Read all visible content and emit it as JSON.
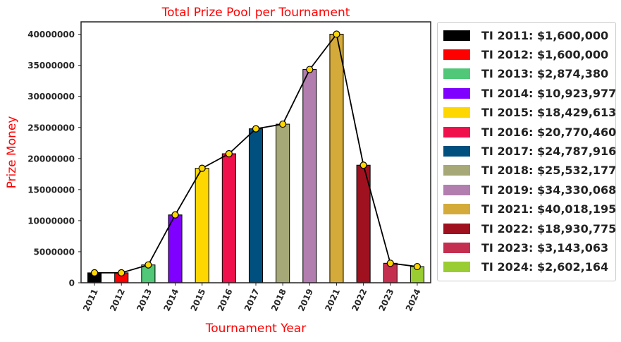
{
  "chart_data": {
    "type": "bar",
    "title": "Total Prize Pool per Tournament",
    "xlabel": "Tournament Year",
    "ylabel": "Prize Money",
    "categories": [
      "2011",
      "2012",
      "2013",
      "2014",
      "2015",
      "2016",
      "2017",
      "2018",
      "2019",
      "2021",
      "2022",
      "2023",
      "2024"
    ],
    "values": [
      1600000,
      1600000,
      2874380,
      10923977,
      18429613,
      20770460,
      24787916,
      25532177,
      34330068,
      40018195,
      18930775,
      3143063,
      2602164
    ],
    "line_overlay": {
      "values": [
        1600000,
        1600000,
        2874380,
        10923977,
        18429613,
        20770460,
        24787916,
        25532177,
        34330068,
        40018195,
        18930775,
        3143063,
        2602164
      ],
      "line_color": "#000000",
      "marker_color": "#FFD700"
    },
    "bar_colors": [
      "#000000",
      "#FF0000",
      "#50C878",
      "#8000FF",
      "#FFD700",
      "#F0104C",
      "#00507F",
      "#A6A877",
      "#B27DAF",
      "#D4AB3A",
      "#A0111F",
      "#C42F4F",
      "#9ACD32"
    ],
    "ylim": [
      0,
      42000000
    ],
    "yticks": [
      0,
      5000000,
      10000000,
      15000000,
      20000000,
      25000000,
      30000000,
      35000000,
      40000000
    ],
    "ytick_labels": [
      "0",
      "5000000",
      "10000000",
      "15000000",
      "20000000",
      "25000000",
      "30000000",
      "35000000",
      "40000000"
    ],
    "grid": false,
    "title_color": "#FF0000",
    "label_color": "#FF0000",
    "legend_position": "outside-right",
    "legend": [
      {
        "label": "TI 2011: $1,600,000",
        "color": "#000000"
      },
      {
        "label": "TI 2012: $1,600,000",
        "color": "#FF0000"
      },
      {
        "label": "TI 2013: $2,874,380",
        "color": "#50C878"
      },
      {
        "label": "TI 2014: $10,923,977",
        "color": "#8000FF"
      },
      {
        "label": "TI 2015: $18,429,613",
        "color": "#FFD700"
      },
      {
        "label": "TI 2016: $20,770,460",
        "color": "#F0104C"
      },
      {
        "label": "TI 2017: $24,787,916",
        "color": "#00507F"
      },
      {
        "label": "TI 2018: $25,532,177",
        "color": "#A6A877"
      },
      {
        "label": "TI 2019: $34,330,068",
        "color": "#B27DAF"
      },
      {
        "label": "TI 2021: $40,018,195",
        "color": "#D4AB3A"
      },
      {
        "label": "TI 2022: $18,930,775",
        "color": "#A0111F"
      },
      {
        "label": "TI 2023: $3,143,063",
        "color": "#C42F4F"
      },
      {
        "label": "TI 2024: $2,602,164",
        "color": "#9ACD32"
      }
    ]
  }
}
